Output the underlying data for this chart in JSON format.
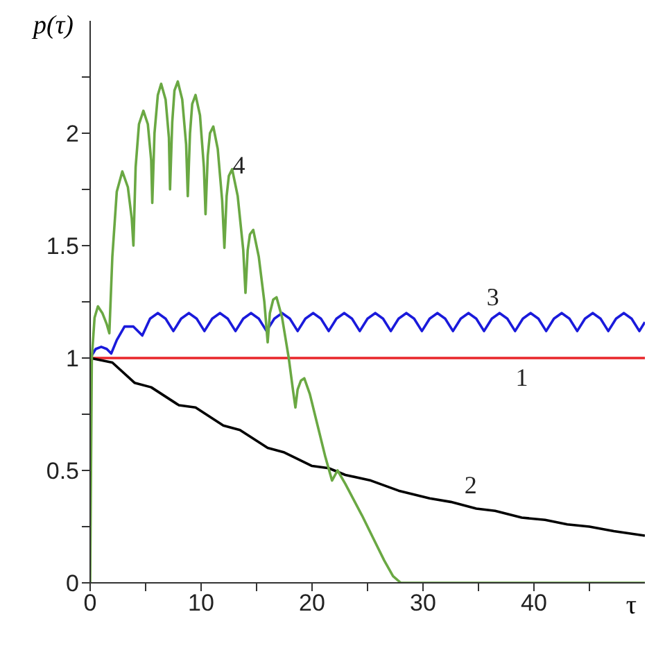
{
  "chart_data": {
    "type": "line",
    "xlabel": "τ",
    "ylabel": "p(τ)",
    "xlim": [
      0,
      50
    ],
    "ylim": [
      0,
      2.5
    ],
    "xticks": [
      0,
      {
        "value": 5,
        "label": null
      },
      10,
      {
        "value": 15,
        "label": null
      },
      20,
      {
        "value": 25,
        "label": null
      },
      30,
      {
        "value": 35,
        "label": null
      },
      40,
      {
        "value": 45,
        "label": null
      }
    ],
    "yticks": [
      0,
      {
        "value": 0.25,
        "label": null
      },
      0.5,
      {
        "value": 0.75,
        "label": null
      },
      1,
      {
        "value": 1.25,
        "label": null
      },
      1.5,
      {
        "value": 1.75,
        "label": null
      },
      2,
      {
        "value": 2.25,
        "label": null
      }
    ],
    "grid": false,
    "legend": false,
    "marker": "none",
    "line_style": "solid",
    "series": [
      {
        "name": "1",
        "color": "#e8262a",
        "x": [
          0,
          50
        ],
        "values": [
          1,
          1
        ]
      },
      {
        "name": "2",
        "color": "#000000",
        "x": [
          0,
          2,
          4,
          5.5,
          8,
          9.5,
          12,
          13.5,
          16,
          17.5,
          20,
          21.5,
          23,
          25.3,
          27.8,
          30.6,
          32.5,
          34.8,
          36.5,
          38.9,
          41,
          43,
          45,
          47.2,
          50
        ],
        "values": [
          1,
          0.98,
          0.89,
          0.87,
          0.79,
          0.78,
          0.7,
          0.68,
          0.6,
          0.58,
          0.52,
          0.51,
          0.48,
          0.455,
          0.41,
          0.376,
          0.36,
          0.33,
          0.32,
          0.29,
          0.28,
          0.26,
          0.25,
          0.23,
          0.21
        ]
      },
      {
        "name": "3",
        "color": "#1a1adb",
        "x": [
          0,
          0.5,
          1,
          1.5,
          1.9,
          2.4,
          3.1,
          3.9,
          4.7,
          5.4,
          6.1,
          6.8,
          7.5,
          8.2,
          8.9,
          9.6,
          10.3,
          11,
          11.7,
          12.4,
          13.1,
          13.8,
          14.5,
          15.2,
          15.9,
          16.6,
          17.3,
          18,
          18.7,
          19.4,
          20.1,
          20.8,
          21.5,
          22.2,
          22.9,
          23.6,
          24.3,
          25,
          25.7,
          26.4,
          27.1,
          27.8,
          28.5,
          29.2,
          29.9,
          30.6,
          31.3,
          32,
          32.7,
          33.4,
          34.1,
          34.8,
          35.5,
          36.2,
          36.9,
          37.6,
          38.3,
          39,
          39.7,
          40.4,
          41.1,
          41.8,
          42.5,
          43.2,
          43.9,
          44.6,
          45.3,
          46,
          46.7,
          47.4,
          48.1,
          48.8,
          49.5,
          50
        ],
        "values": [
          1,
          1.04,
          1.05,
          1.04,
          1.02,
          1.08,
          1.14,
          1.14,
          1.1,
          1.175,
          1.2,
          1.175,
          1.12,
          1.175,
          1.2,
          1.175,
          1.12,
          1.175,
          1.2,
          1.175,
          1.12,
          1.175,
          1.2,
          1.175,
          1.12,
          1.175,
          1.2,
          1.175,
          1.12,
          1.175,
          1.2,
          1.175,
          1.12,
          1.175,
          1.2,
          1.175,
          1.12,
          1.175,
          1.2,
          1.175,
          1.12,
          1.175,
          1.2,
          1.175,
          1.12,
          1.175,
          1.2,
          1.175,
          1.12,
          1.175,
          1.2,
          1.175,
          1.12,
          1.175,
          1.2,
          1.175,
          1.12,
          1.175,
          1.2,
          1.175,
          1.12,
          1.175,
          1.2,
          1.175,
          1.12,
          1.175,
          1.2,
          1.175,
          1.12,
          1.175,
          1.2,
          1.175,
          1.12,
          1.16
        ]
      },
      {
        "name": "4",
        "color": "#6aa843",
        "x": [
          0,
          0.15,
          0.4,
          0.7,
          1.1,
          1.5,
          1.73,
          2,
          2.4,
          2.9,
          3.4,
          3.75,
          3.9,
          4.1,
          4.4,
          4.8,
          5.2,
          5.5,
          5.6,
          5.8,
          6.1,
          6.4,
          6.8,
          7.1,
          7.2,
          7.4,
          7.6,
          7.9,
          8.3,
          8.65,
          8.8,
          9,
          9.2,
          9.5,
          9.9,
          10.25,
          10.4,
          10.6,
          10.8,
          11.1,
          11.5,
          11.9,
          12.1,
          12.3,
          12.5,
          12.8,
          13.3,
          13.8,
          14,
          14.2,
          14.4,
          14.7,
          15.2,
          15.7,
          16,
          16.2,
          16.5,
          16.8,
          17.3,
          17.9,
          18.3,
          18.5,
          18.7,
          19,
          19.3,
          19.8,
          20.5,
          21.2,
          21.8,
          22.3,
          23,
          24.5,
          25.5,
          26.5,
          27.3,
          28,
          50
        ],
        "values": [
          0,
          1,
          1.18,
          1.23,
          1.2,
          1.15,
          1.11,
          1.45,
          1.74,
          1.83,
          1.76,
          1.62,
          1.5,
          1.85,
          2.04,
          2.1,
          2.04,
          1.88,
          1.69,
          2,
          2.17,
          2.22,
          2.15,
          1.98,
          1.75,
          2.05,
          2.19,
          2.23,
          2.15,
          1.95,
          1.72,
          2,
          2.13,
          2.17,
          2.08,
          1.85,
          1.64,
          1.9,
          2,
          2.03,
          1.93,
          1.7,
          1.49,
          1.72,
          1.81,
          1.84,
          1.72,
          1.48,
          1.29,
          1.48,
          1.55,
          1.57,
          1.45,
          1.25,
          1.07,
          1.2,
          1.26,
          1.27,
          1.18,
          1,
          0.85,
          0.78,
          0.86,
          0.9,
          0.91,
          0.84,
          0.7,
          0.56,
          0.455,
          0.5,
          0.44,
          0.3,
          0.2,
          0.1,
          0.03,
          0,
          0
        ]
      }
    ]
  }
}
